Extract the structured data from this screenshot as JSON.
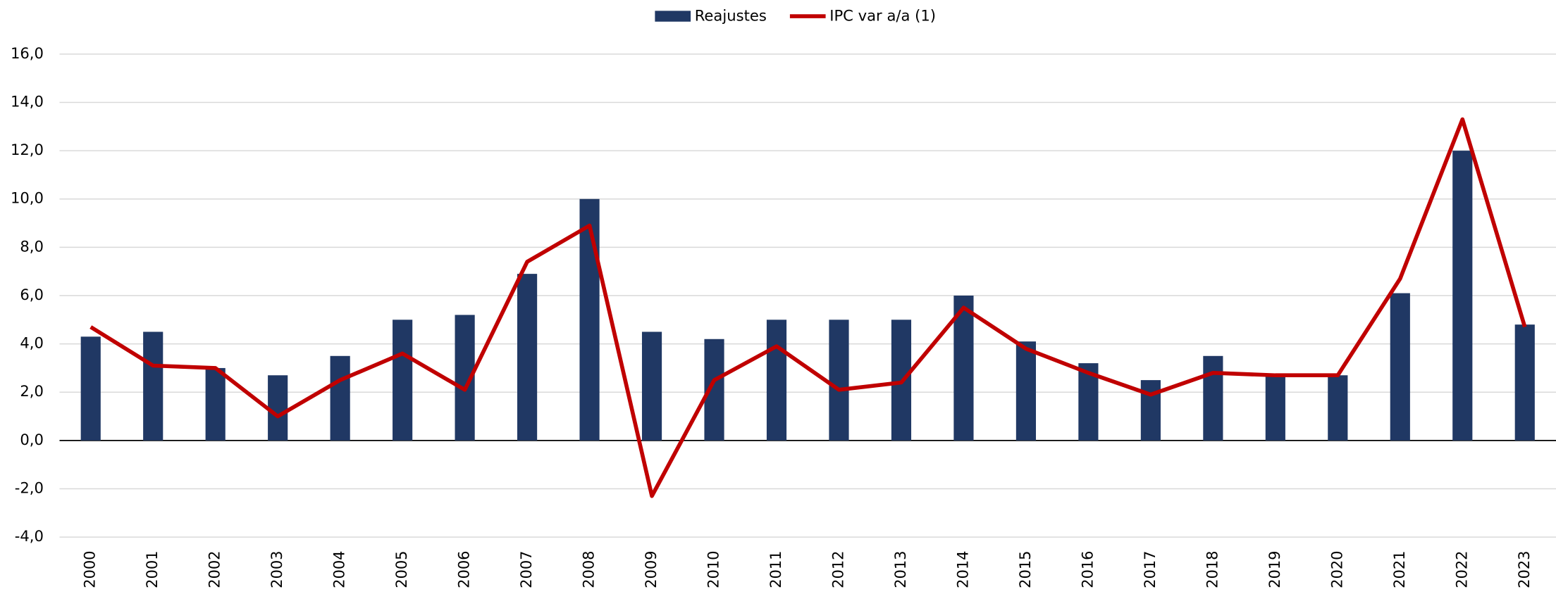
{
  "chart_data": {
    "type": "bar-line",
    "categories": [
      "2000",
      "2001",
      "2002",
      "2003",
      "2004",
      "2005",
      "2006",
      "2007",
      "2008",
      "2009",
      "2010",
      "2011",
      "2012",
      "2013",
      "2014",
      "2015",
      "2016",
      "2017",
      "2018",
      "2019",
      "2020",
      "2021",
      "2022",
      "2023"
    ],
    "series": [
      {
        "name": "Reajustes",
        "type": "bar",
        "color": "#203864",
        "values": [
          4.3,
          4.5,
          3.0,
          2.7,
          3.5,
          5.0,
          5.2,
          6.9,
          10.0,
          4.5,
          4.2,
          5.0,
          5.0,
          5.0,
          6.0,
          4.1,
          3.2,
          2.5,
          3.5,
          2.7,
          2.7,
          6.1,
          12.0,
          4.8
        ]
      },
      {
        "name": "IPC var a/a (1)",
        "type": "line",
        "color": "#c00000",
        "values": [
          4.7,
          3.1,
          3.0,
          1.0,
          2.5,
          3.6,
          2.1,
          7.4,
          8.9,
          -2.3,
          2.5,
          3.9,
          2.1,
          2.4,
          5.5,
          3.8,
          2.8,
          1.9,
          2.8,
          2.7,
          2.7,
          6.7,
          13.3,
          4.7
        ]
      }
    ],
    "ylim": [
      -4,
      16
    ],
    "yticks": [
      {
        "value": -4,
        "label": "-4,0"
      },
      {
        "value": -2,
        "label": "-2,0"
      },
      {
        "value": 0,
        "label": "0,0"
      },
      {
        "value": 2,
        "label": "2,0"
      },
      {
        "value": 4,
        "label": "4,0"
      },
      {
        "value": 6,
        "label": "6,0"
      },
      {
        "value": 8,
        "label": "8,0"
      },
      {
        "value": 10,
        "label": "10,0"
      },
      {
        "value": 12,
        "label": "12,0"
      },
      {
        "value": 14,
        "label": "14,0"
      },
      {
        "value": 16,
        "label": "16,0"
      }
    ],
    "grid": true,
    "legend": "top"
  }
}
